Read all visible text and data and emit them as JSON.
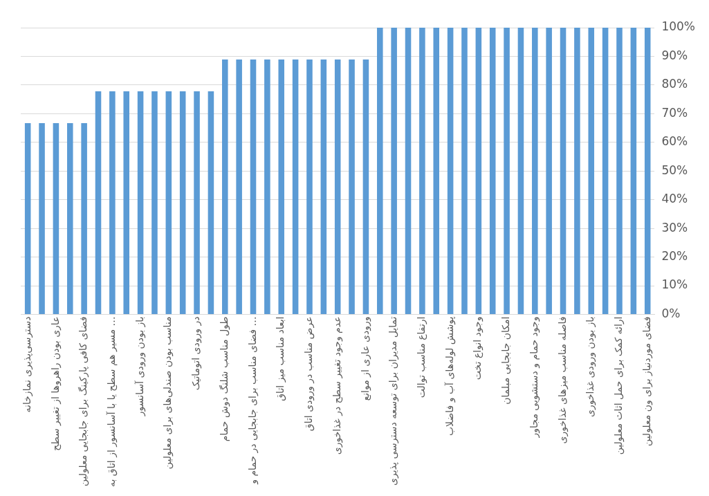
{
  "chart_data": {
    "type": "bar",
    "categories": [
      "دسترسی‌پذیری نمازخانه",
      null,
      "عاری بودن راهروها از تغییر سطح",
      null,
      "فضای کافی پارکینگ برای جابجایی معلولین",
      null,
      "مسیر هم سطح یا با آسانسور از اتاق به …",
      null,
      "باز بودن ورودی آسانسور",
      null,
      "مناسب بودن صندلی‌های برای معلولین",
      null,
      "در ورودی اتوماتیک",
      null,
      "طول مناسب شلنگ دوش حمام",
      null,
      "فضای مناسب برای جابجایی در حمام و …",
      null,
      "ابعاد مناسب میز اتاق",
      null,
      "عرض مناسب در ورودی اتاق",
      null,
      "عدم وجود تغییر سطح در غذاخوری",
      null,
      "ورودی عاری از موانع",
      null,
      "تمایل مدیران برای توسعه دسترسی پذیری",
      null,
      "ارتفاع مناسب توالت",
      null,
      "پوشش لوله‌های آب و فاضلاب",
      null,
      "وجود انواع تخت",
      null,
      "امکان جابجایی مبلمان",
      null,
      "وجود حمام و دستشویی مجاور",
      null,
      "فاصله مناسب میزهای غذاخوری",
      null,
      "باز بودن ورودی غذاخوری",
      null,
      "ارائه کمک برای حمل اثاث معلولین",
      null,
      "فضای موردنیاز برای ون معلولین"
    ],
    "values": [
      66.7,
      66.7,
      66.7,
      66.7,
      66.7,
      77.8,
      77.8,
      77.8,
      77.8,
      77.8,
      77.8,
      77.8,
      77.8,
      77.8,
      88.9,
      88.9,
      88.9,
      88.9,
      88.9,
      88.9,
      88.9,
      88.9,
      88.9,
      88.9,
      88.9,
      100,
      100,
      100,
      100,
      100,
      100,
      100,
      100,
      100,
      100,
      100,
      100,
      100,
      100,
      100,
      100,
      100,
      100,
      100,
      100
    ],
    "color": "#5b9bd5",
    "ylim": [
      0,
      100
    ],
    "yticks": [
      {
        "value": 0,
        "label": "0%"
      },
      {
        "value": 10,
        "label": "10%"
      },
      {
        "value": 20,
        "label": "20%"
      },
      {
        "value": 30,
        "label": "30%"
      },
      {
        "value": 40,
        "label": "40%"
      },
      {
        "value": 50,
        "label": "50%"
      },
      {
        "value": 60,
        "label": "60%"
      },
      {
        "value": 70,
        "label": "70%"
      },
      {
        "value": 80,
        "label": "80%"
      },
      {
        "value": 90,
        "label": "90%"
      },
      {
        "value": 100,
        "label": "100%"
      }
    ],
    "grid": "y"
  }
}
